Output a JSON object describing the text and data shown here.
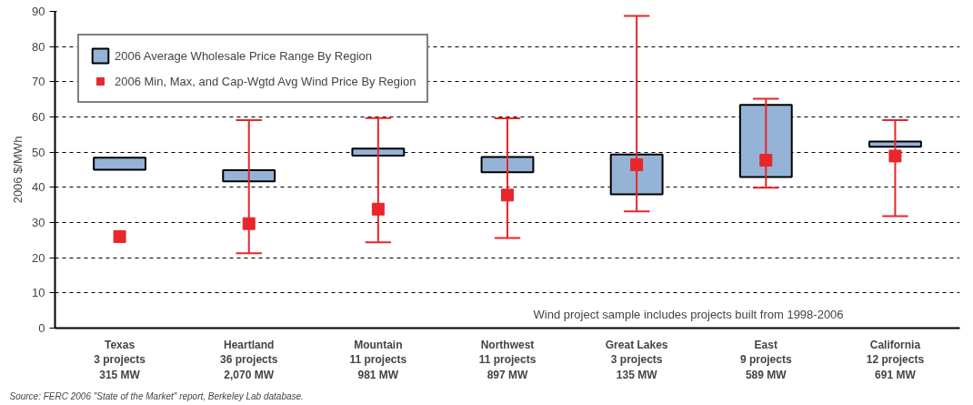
{
  "chart_data": {
    "type": "bar",
    "ylabel": "2006 $/MWh",
    "categories": [
      "Texas\n3 projects\n315 MW",
      "Heartland\n36 projects\n2,070 MW",
      "Mountain\n11 projects\n981 MW",
      "Northwest\n11 projects\n897 MW",
      "Great Lakes\n3 projects\n135 MW",
      "East\n9 projects\n589 MW",
      "California\n12 projects\n691 MW"
    ],
    "series": [
      {
        "name": "2006 Average Wholesale Price Range By Region",
        "color": "#95b3d7",
        "base": [
          45,
          41.7,
          49,
          44.3,
          38,
          42.9,
          51.5
        ],
        "values": [
          3.4,
          3.2,
          2,
          4.3,
          11.3,
          20.5,
          1.5
        ]
      },
      {
        "name": "2006 Min, Max, and Cap-Wgtd Avg Wind Price By Region",
        "type": "scatter",
        "color": "#e8262b",
        "values": [
          26,
          29.7,
          33.8,
          37.8,
          46.4,
          47.7,
          48.9
        ],
        "errors": [
          null,
          [
            21.3,
            59.1
          ],
          [
            24.4,
            59.7
          ],
          [
            25.6,
            59.6
          ],
          [
            33.2,
            88.7
          ],
          [
            39.9,
            65.2
          ],
          [
            31.8,
            59.1
          ]
        ]
      }
    ],
    "marker": "square",
    "ylim": [
      0,
      90
    ],
    "yticks": [
      0,
      10,
      20,
      30,
      40,
      50,
      60,
      70,
      80,
      90
    ],
    "grid": "y",
    "legend": "top left",
    "annotations": [
      "Wind project sample includes projects built from 1998-2006",
      "Source: FERC 2006 \"State of the Market\" report, Berkeley Lab database."
    ]
  }
}
